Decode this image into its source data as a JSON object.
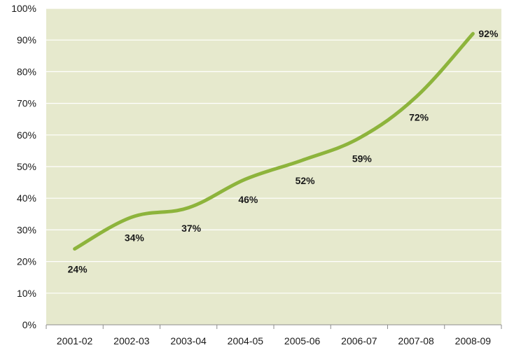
{
  "chart_data": {
    "type": "line",
    "categories": [
      "2001-02",
      "2002-03",
      "2003-04",
      "2004-05",
      "2005-06",
      "2006-07",
      "2007-08",
      "2008-09"
    ],
    "series": [
      {
        "values": [
          24,
          34,
          37,
          46,
          52,
          59,
          72,
          92
        ],
        "labels": [
          "24%",
          "34%",
          "37%",
          "46%",
          "52%",
          "59%",
          "72%",
          "92%"
        ]
      }
    ],
    "ylim": [
      0,
      100
    ],
    "yticks": [
      "0%",
      "10%",
      "20%",
      "30%",
      "40%",
      "50%",
      "60%",
      "70%",
      "80%",
      "90%",
      "100%"
    ],
    "grid": true,
    "legend": "none",
    "colors": {
      "plot_background": "#e6e9cd",
      "line": "#8db43c",
      "grid": "#ffffff",
      "axis": "#8c8c8c"
    }
  }
}
